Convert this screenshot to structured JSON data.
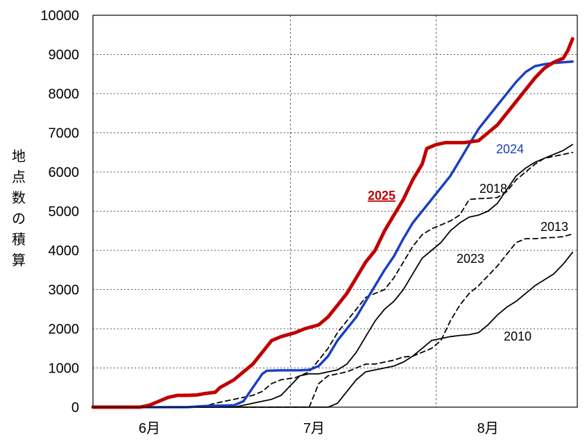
{
  "chart_data": {
    "type": "line",
    "ylabel": "地点数の積算",
    "xlabel": "",
    "title": "",
    "ylim": [
      0,
      10000
    ],
    "yticks": [
      0,
      1000,
      2000,
      3000,
      4000,
      5000,
      6000,
      7000,
      8000,
      9000,
      10000
    ],
    "x_axis": {
      "unit": "day",
      "start": "5月20日",
      "end": "8月31日",
      "xlim": [
        -12,
        91
      ]
    },
    "xticks": [
      {
        "label": "6月",
        "x": 0
      },
      {
        "label": "7月",
        "x": 35
      },
      {
        "label": "8月",
        "x": 72
      }
    ],
    "grid": {
      "horizontal": "dotted",
      "vertical": "dashed",
      "vertical_at_day": [
        30,
        61
      ]
    },
    "series": [
      {
        "name": "2025",
        "color": "#c00000",
        "dash": "solid",
        "width": "thick",
        "label_style": "bold-underlined",
        "points": [
          [
            -12,
            0
          ],
          [
            -2,
            0
          ],
          [
            0,
            50
          ],
          [
            2,
            150
          ],
          [
            4,
            250
          ],
          [
            6,
            300
          ],
          [
            8,
            300
          ],
          [
            10,
            310
          ],
          [
            12,
            350
          ],
          [
            14,
            380
          ],
          [
            15,
            500
          ],
          [
            18,
            700
          ],
          [
            20,
            900
          ],
          [
            22,
            1100
          ],
          [
            24,
            1400
          ],
          [
            26,
            1700
          ],
          [
            28,
            1800
          ],
          [
            31,
            1900
          ],
          [
            33,
            2000
          ],
          [
            36,
            2100
          ],
          [
            38,
            2300
          ],
          [
            40,
            2600
          ],
          [
            42,
            2900
          ],
          [
            44,
            3300
          ],
          [
            46,
            3700
          ],
          [
            48,
            4000
          ],
          [
            50,
            4500
          ],
          [
            52,
            4900
          ],
          [
            54,
            5300
          ],
          [
            56,
            5800
          ],
          [
            58,
            6200
          ],
          [
            59,
            6600
          ],
          [
            61,
            6700
          ],
          [
            63,
            6750
          ],
          [
            67,
            6750
          ],
          [
            70,
            6800
          ],
          [
            72,
            7000
          ],
          [
            74,
            7200
          ],
          [
            76,
            7500
          ],
          [
            78,
            7800
          ],
          [
            80,
            8100
          ],
          [
            82,
            8400
          ],
          [
            84,
            8650
          ],
          [
            86,
            8800
          ],
          [
            88,
            8900
          ],
          [
            89,
            9100
          ],
          [
            90,
            9400
          ]
        ]
      },
      {
        "name": "2024",
        "color": "#1a3fc4",
        "dash": "solid",
        "width": "medium",
        "points": [
          [
            -12,
            0
          ],
          [
            8,
            0
          ],
          [
            12,
            30
          ],
          [
            18,
            50
          ],
          [
            20,
            150
          ],
          [
            22,
            500
          ],
          [
            24,
            850
          ],
          [
            25,
            930
          ],
          [
            28,
            940
          ],
          [
            32,
            940
          ],
          [
            34,
            950
          ],
          [
            36,
            1050
          ],
          [
            38,
            1300
          ],
          [
            40,
            1700
          ],
          [
            42,
            2000
          ],
          [
            44,
            2300
          ],
          [
            46,
            2700
          ],
          [
            48,
            3100
          ],
          [
            50,
            3500
          ],
          [
            52,
            3850
          ],
          [
            54,
            4300
          ],
          [
            56,
            4700
          ],
          [
            58,
            5000
          ],
          [
            60,
            5300
          ],
          [
            62,
            5600
          ],
          [
            64,
            5900
          ],
          [
            66,
            6300
          ],
          [
            68,
            6700
          ],
          [
            70,
            7100
          ],
          [
            72,
            7400
          ],
          [
            74,
            7700
          ],
          [
            76,
            8000
          ],
          [
            78,
            8300
          ],
          [
            80,
            8550
          ],
          [
            82,
            8700
          ],
          [
            84,
            8750
          ],
          [
            86,
            8780
          ],
          [
            88,
            8800
          ],
          [
            90,
            8820
          ]
        ]
      },
      {
        "name": "2018",
        "color": "#000000",
        "dash": "dashed",
        "width": "thin",
        "points": [
          [
            -12,
            0
          ],
          [
            11,
            0
          ],
          [
            14,
            100
          ],
          [
            18,
            200
          ],
          [
            20,
            250
          ],
          [
            22,
            300
          ],
          [
            24,
            400
          ],
          [
            26,
            600
          ],
          [
            28,
            700
          ],
          [
            31,
            750
          ],
          [
            34,
            900
          ],
          [
            36,
            1200
          ],
          [
            38,
            1500
          ],
          [
            40,
            1900
          ],
          [
            42,
            2200
          ],
          [
            44,
            2500
          ],
          [
            46,
            2800
          ],
          [
            48,
            2900
          ],
          [
            50,
            3000
          ],
          [
            52,
            3300
          ],
          [
            54,
            3700
          ],
          [
            56,
            4100
          ],
          [
            58,
            4400
          ],
          [
            60,
            4550
          ],
          [
            62,
            4650
          ],
          [
            64,
            4750
          ],
          [
            66,
            4900
          ],
          [
            68,
            5300
          ],
          [
            70,
            5320
          ],
          [
            72,
            5330
          ],
          [
            74,
            5350
          ],
          [
            76,
            5500
          ],
          [
            78,
            5800
          ],
          [
            80,
            6000
          ],
          [
            82,
            6200
          ],
          [
            84,
            6350
          ],
          [
            86,
            6400
          ],
          [
            88,
            6450
          ],
          [
            90,
            6500
          ]
        ]
      },
      {
        "name": "2013",
        "color": "#000000",
        "dash": "dashed",
        "width": "thin",
        "points": [
          [
            -12,
            0
          ],
          [
            34,
            0
          ],
          [
            36,
            600
          ],
          [
            38,
            800
          ],
          [
            40,
            850
          ],
          [
            42,
            900
          ],
          [
            44,
            1000
          ],
          [
            46,
            1100
          ],
          [
            48,
            1100
          ],
          [
            50,
            1150
          ],
          [
            52,
            1200
          ],
          [
            54,
            1280
          ],
          [
            56,
            1300
          ],
          [
            58,
            1400
          ],
          [
            60,
            1500
          ],
          [
            62,
            1700
          ],
          [
            64,
            2200
          ],
          [
            66,
            2600
          ],
          [
            68,
            2900
          ],
          [
            70,
            3100
          ],
          [
            72,
            3350
          ],
          [
            74,
            3600
          ],
          [
            76,
            3900
          ],
          [
            78,
            4200
          ],
          [
            80,
            4300
          ],
          [
            82,
            4300
          ],
          [
            84,
            4320
          ],
          [
            86,
            4330
          ],
          [
            88,
            4350
          ],
          [
            90,
            4420
          ]
        ]
      },
      {
        "name": "2023",
        "color": "#000000",
        "dash": "solid",
        "width": "thin",
        "points": [
          [
            -12,
            0
          ],
          [
            18,
            0
          ],
          [
            20,
            50
          ],
          [
            22,
            100
          ],
          [
            24,
            150
          ],
          [
            26,
            200
          ],
          [
            28,
            300
          ],
          [
            30,
            550
          ],
          [
            32,
            800
          ],
          [
            34,
            850
          ],
          [
            36,
            850
          ],
          [
            38,
            900
          ],
          [
            40,
            950
          ],
          [
            42,
            1100
          ],
          [
            44,
            1400
          ],
          [
            46,
            1800
          ],
          [
            48,
            2200
          ],
          [
            50,
            2500
          ],
          [
            52,
            2700
          ],
          [
            54,
            3000
          ],
          [
            56,
            3400
          ],
          [
            58,
            3800
          ],
          [
            60,
            4000
          ],
          [
            62,
            4200
          ],
          [
            64,
            4500
          ],
          [
            66,
            4700
          ],
          [
            68,
            4850
          ],
          [
            70,
            4900
          ],
          [
            72,
            5000
          ],
          [
            74,
            5200
          ],
          [
            76,
            5550
          ],
          [
            78,
            5900
          ],
          [
            80,
            6100
          ],
          [
            82,
            6250
          ],
          [
            84,
            6350
          ],
          [
            86,
            6450
          ],
          [
            88,
            6550
          ],
          [
            90,
            6700
          ]
        ]
      },
      {
        "name": "2010",
        "color": "#000000",
        "dash": "solid",
        "width": "thin",
        "points": [
          [
            -12,
            0
          ],
          [
            34,
            0
          ],
          [
            38,
            0
          ],
          [
            40,
            100
          ],
          [
            42,
            400
          ],
          [
            44,
            700
          ],
          [
            46,
            900
          ],
          [
            48,
            950
          ],
          [
            50,
            1000
          ],
          [
            52,
            1050
          ],
          [
            54,
            1150
          ],
          [
            56,
            1300
          ],
          [
            58,
            1500
          ],
          [
            60,
            1700
          ],
          [
            62,
            1750
          ],
          [
            64,
            1800
          ],
          [
            66,
            1830
          ],
          [
            68,
            1850
          ],
          [
            70,
            1900
          ],
          [
            72,
            2100
          ],
          [
            74,
            2350
          ],
          [
            76,
            2550
          ],
          [
            78,
            2700
          ],
          [
            80,
            2900
          ],
          [
            82,
            3100
          ],
          [
            84,
            3250
          ],
          [
            86,
            3400
          ],
          [
            88,
            3650
          ],
          [
            90,
            3950
          ]
        ]
      }
    ]
  }
}
